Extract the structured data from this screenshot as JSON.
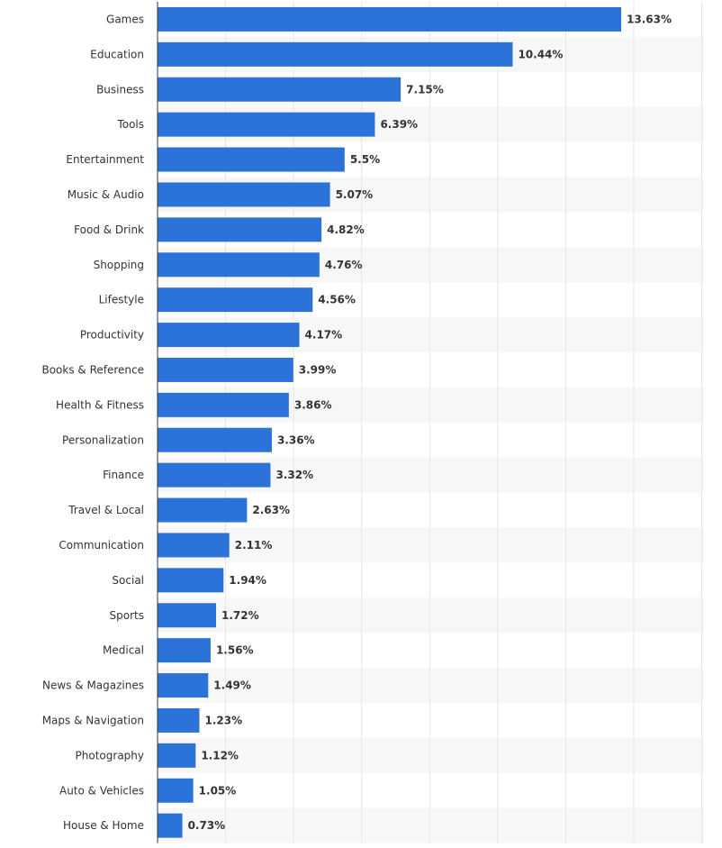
{
  "chart_data": {
    "type": "bar",
    "orientation": "horizontal",
    "title": "",
    "xlabel": "",
    "ylabel": "",
    "categories": [
      "Games",
      "Education",
      "Business",
      "Tools",
      "Entertainment",
      "Music & Audio",
      "Food & Drink",
      "Shopping",
      "Lifestyle",
      "Productivity",
      "Books & Reference",
      "Health & Fitness",
      "Personalization",
      "Finance",
      "Travel & Local",
      "Communication",
      "Social",
      "Sports",
      "Medical",
      "News & Magazines",
      "Maps & Navigation",
      "Photography",
      "Auto & Vehicles",
      "House & Home"
    ],
    "values": [
      13.63,
      10.44,
      7.15,
      6.39,
      5.5,
      5.07,
      4.82,
      4.76,
      4.56,
      4.17,
      3.99,
      3.86,
      3.36,
      3.32,
      2.63,
      2.11,
      1.94,
      1.72,
      1.56,
      1.49,
      1.23,
      1.12,
      1.05,
      0.73
    ],
    "value_labels": [
      "13.63%",
      "10.44%",
      "7.15%",
      "6.39%",
      "5.5%",
      "5.07%",
      "4.82%",
      "4.76%",
      "4.56%",
      "4.17%",
      "3.99%",
      "3.86%",
      "3.36%",
      "3.32%",
      "2.63%",
      "2.11%",
      "1.94%",
      "1.72%",
      "1.56%",
      "1.49%",
      "1.23%",
      "1.12%",
      "1.05%",
      "0.73%"
    ],
    "xlim": [
      0,
      16
    ],
    "grid": true,
    "legend": "none",
    "colors": {
      "bar": "#2b73d8",
      "grid": "#e6e6e6",
      "band": "#f7f7f7",
      "axis": "#333333",
      "text": "#333333"
    }
  }
}
